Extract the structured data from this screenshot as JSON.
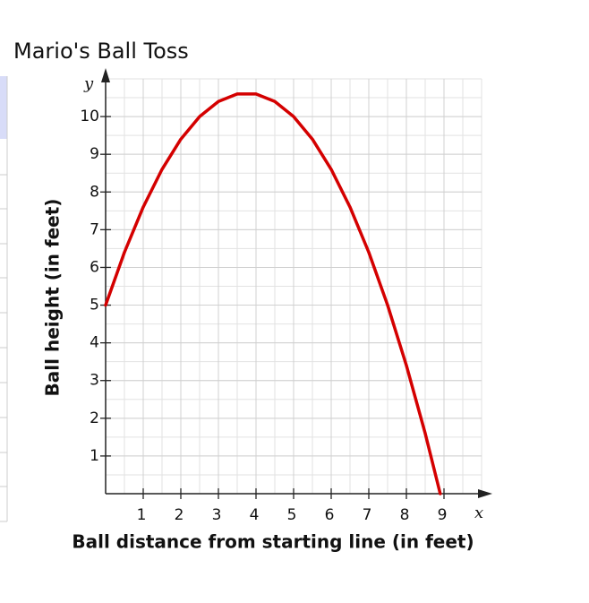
{
  "chart_data": {
    "type": "line",
    "title": "Mario's Ball Toss",
    "x_label": "Ball distance from starting line (in feet)",
    "y_label": "Ball height (in feet)",
    "x_symbol": "x",
    "y_symbol": "y",
    "x": [
      0,
      0.5,
      1,
      1.5,
      2,
      2.5,
      3,
      3.5,
      4,
      4.5,
      5,
      5.5,
      6,
      6.5,
      7,
      7.5,
      8,
      8.5,
      8.9
    ],
    "series": [
      {
        "color": "#d40000",
        "values": [
          5.0,
          6.4,
          7.6,
          8.6,
          9.4,
          10.0,
          10.4,
          10.6,
          10.6,
          10.4,
          10.0,
          9.4,
          8.6,
          7.6,
          6.4,
          5.0,
          3.4,
          1.6,
          0.0
        ]
      }
    ],
    "xlim": [
      0,
      10
    ],
    "ylim": [
      0,
      11
    ],
    "xticks": [
      1,
      2,
      3,
      4,
      5,
      6,
      7,
      8,
      9
    ],
    "yticks": [
      1,
      2,
      3,
      4,
      5,
      6,
      7,
      8,
      9,
      10
    ],
    "grid": true
  }
}
